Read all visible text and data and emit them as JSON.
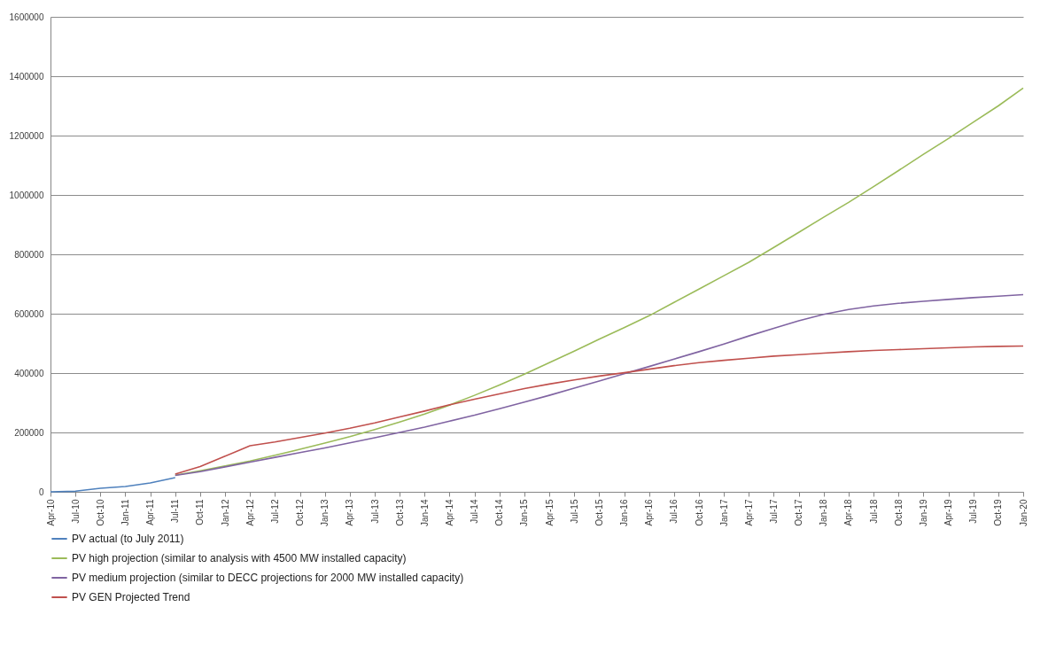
{
  "chart_data": {
    "type": "line",
    "categories": [
      "Apr-10",
      "Jul-10",
      "Oct-10",
      "Jan-11",
      "Apr-11",
      "Jul-11",
      "Oct-11",
      "Jan-12",
      "Apr-12",
      "Jul-12",
      "Oct-12",
      "Jan-13",
      "Apr-13",
      "Jul-13",
      "Oct-13",
      "Jan-14",
      "Apr-14",
      "Jul-14",
      "Oct-14",
      "Jan-15",
      "Apr-15",
      "Jul-15",
      "Oct-15",
      "Jan-16",
      "Apr-16",
      "Jul-16",
      "Oct-16",
      "Jan-17",
      "Apr-17",
      "Jul-17",
      "Oct-17",
      "Jan-18",
      "Apr-18",
      "Jul-18",
      "Oct-18",
      "Jan-19",
      "Apr-19",
      "Jul-19",
      "Oct-19",
      "Jan-20"
    ],
    "series": [
      {
        "name": "PV actual (to July 2011)",
        "color": "#4f81bd",
        "values": [
          0,
          2000,
          12000,
          18000,
          30000,
          48000,
          null,
          null,
          null,
          null,
          null,
          null,
          null,
          null,
          null,
          null,
          null,
          null,
          null,
          null,
          null,
          null,
          null,
          null,
          null,
          null,
          null,
          null,
          null,
          null,
          null,
          null,
          null,
          null,
          null,
          null,
          null,
          null,
          null,
          null
        ]
      },
      {
        "name": "PV high projection (similar to analysis with 4500 MW installed capacity)",
        "color": "#9bbb59",
        "values": [
          null,
          null,
          null,
          null,
          null,
          56000,
          71000,
          87000,
          104000,
          123000,
          143000,
          164000,
          186000,
          210000,
          235000,
          262000,
          292000,
          325000,
          360000,
          396000,
          435000,
          474000,
          514000,
          553000,
          593000,
          638000,
          683000,
          728000,
          773000,
          823000,
          874000,
          925000,
          975000,
          1028000,
          1082000,
          1137000,
          1190000,
          1245000,
          1300000,
          1360000
        ]
      },
      {
        "name": "PV medium  projection (similar to DECC projections for 2000 MW installed capacity)",
        "color": "#8064a2",
        "values": [
          null,
          null,
          null,
          null,
          null,
          55000,
          68000,
          84000,
          100000,
          116000,
          132000,
          148000,
          165000,
          182000,
          200000,
          218000,
          238000,
          258000,
          280000,
          302000,
          325000,
          349000,
          373000,
          398000,
          422000,
          447000,
          472000,
          498000,
          525000,
          551000,
          576000,
          598000,
          614000,
          626000,
          635000,
          642000,
          648000,
          654000,
          659000,
          664000
        ]
      },
      {
        "name": "PV GEN Projected Trend",
        "color": "#c0504d",
        "values": [
          null,
          null,
          null,
          null,
          null,
          60000,
          85000,
          120000,
          155000,
          168000,
          183000,
          198000,
          214000,
          232000,
          252000,
          272000,
          293000,
          312000,
          330000,
          348000,
          363000,
          377000,
          390000,
          401000,
          413000,
          425000,
          435000,
          443000,
          450000,
          457000,
          462000,
          467000,
          472000,
          476000,
          479000,
          482000,
          485000,
          488000,
          490000,
          491000
        ]
      }
    ],
    "ylim": [
      0,
      1600000
    ],
    "yticks": [
      0,
      200000,
      400000,
      600000,
      800000,
      1000000,
      1200000,
      1400000,
      1600000
    ],
    "grid": "y",
    "legend": "bottom"
  }
}
